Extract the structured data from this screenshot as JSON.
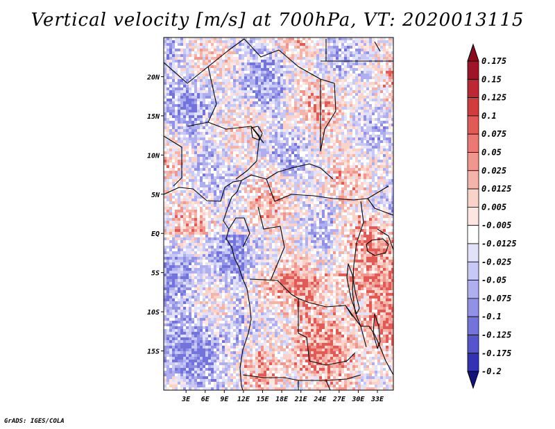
{
  "chart_data": {
    "type": "heatmap",
    "title": "Vertical velocity [m/s] at 700hPa, VT: 2020013115",
    "variable": "Vertical velocity",
    "units": "m/s",
    "level": "700hPa",
    "valid_time": "2020013115",
    "x_range_deg": [
      -0.5,
      35.5
    ],
    "y_range_deg": [
      -20,
      25
    ],
    "x_ticks": [
      {
        "value": 3,
        "label": "3E"
      },
      {
        "value": 6,
        "label": "6E"
      },
      {
        "value": 9,
        "label": "9E"
      },
      {
        "value": 12,
        "label": "12E"
      },
      {
        "value": 15,
        "label": "15E"
      },
      {
        "value": 18,
        "label": "18E"
      },
      {
        "value": 21,
        "label": "21E"
      },
      {
        "value": 24,
        "label": "24E"
      },
      {
        "value": 27,
        "label": "27E"
      },
      {
        "value": 30,
        "label": "30E"
      },
      {
        "value": 33,
        "label": "33E"
      }
    ],
    "y_ticks": [
      {
        "value": 20,
        "label": "20N"
      },
      {
        "value": 15,
        "label": "15N"
      },
      {
        "value": 10,
        "label": "10N"
      },
      {
        "value": 5,
        "label": "5N"
      },
      {
        "value": 0,
        "label": "EQ"
      },
      {
        "value": -5,
        "label": "5S"
      },
      {
        "value": -10,
        "label": "10S"
      },
      {
        "value": -15,
        "label": "15S"
      }
    ],
    "colorbar": {
      "extend": "both",
      "levels": [
        {
          "label": "0.175",
          "color": "#a01428"
        },
        {
          "label": "0.15",
          "color": "#be2832"
        },
        {
          "label": "0.125",
          "color": "#d23c3c"
        },
        {
          "label": "0.1",
          "color": "#e15a55"
        },
        {
          "label": "0.075",
          "color": "#eb7873"
        },
        {
          "label": "0.05",
          "color": "#f0968c"
        },
        {
          "label": "0.025",
          "color": "#f5b4aa"
        },
        {
          "label": "0.0125",
          "color": "#fad2c8"
        },
        {
          "label": "0.005",
          "color": "#fde6e1"
        },
        {
          "label": "-0.005",
          "color": "#ffffff"
        },
        {
          "label": "-0.0125",
          "color": "#e1e1fa"
        },
        {
          "label": "-0.025",
          "color": "#c8c8f5"
        },
        {
          "label": "-0.05",
          "color": "#afaff0"
        },
        {
          "label": "-0.075",
          "color": "#9191e6"
        },
        {
          "label": "-0.1",
          "color": "#7373dc"
        },
        {
          "label": "-0.125",
          "color": "#5555cd"
        },
        {
          "label": "-0.175",
          "color": "#3232b4"
        },
        {
          "label": "-0.2",
          "color": "#1e1e96"
        }
      ],
      "top_arrow_color": "#8c0a1e",
      "bottom_arrow_color": "#141478"
    }
  },
  "footer": {
    "credit": "GrADS: IGES/COLA"
  }
}
